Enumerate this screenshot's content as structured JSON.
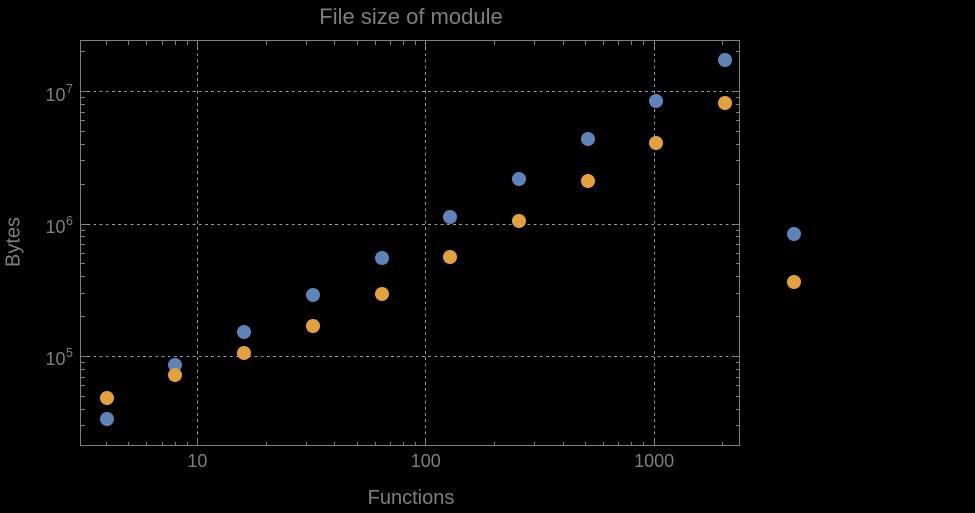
{
  "colors": {
    "background": "#000000",
    "text": "#7e7e7e",
    "frame": "#7f7f7f",
    "gridline": "#9b9b9b",
    "series_blue": "#5e84ba",
    "series_orange": "#e2a13a"
  },
  "x_tick_labels": [
    "10",
    "100",
    "1000"
  ],
  "y_tick_labels": [
    {
      "base": "10",
      "exponent": "5"
    },
    {
      "base": "10",
      "exponent": "6"
    },
    {
      "base": "10",
      "exponent": "7"
    }
  ],
  "chart_data": {
    "type": "scatter",
    "title": "File size of module",
    "xlabel": "Functions",
    "ylabel": "Bytes",
    "x_scale": "log",
    "y_scale": "log",
    "grid": "dotted lines at decades, on",
    "legend": "none",
    "marker_size_px": 14,
    "x_ticks": [
      10,
      100,
      1000
    ],
    "y_ticks": [
      100000,
      1000000,
      10000000
    ],
    "x_range_log10": [
      0.49,
      3.363
    ],
    "y_range_log10": [
      4.347,
      7.3815
    ],
    "x": [
      4,
      8,
      16,
      32,
      64,
      128,
      256,
      512,
      1024,
      2048,
      4096
    ],
    "series": [
      {
        "name": "blue",
        "color": "#5e84ba",
        "values": [
          34000,
          86000,
          152000,
          290000,
          550000,
          1130000,
          2200000,
          4400000,
          8500000,
          17200000,
          840000
        ]
      },
      {
        "name": "orange",
        "color": "#e2a13a",
        "values": [
          49000,
          72000,
          106000,
          169000,
          295000,
          560000,
          1060000,
          2100000,
          4100000,
          8200000,
          365000
        ]
      }
    ]
  }
}
